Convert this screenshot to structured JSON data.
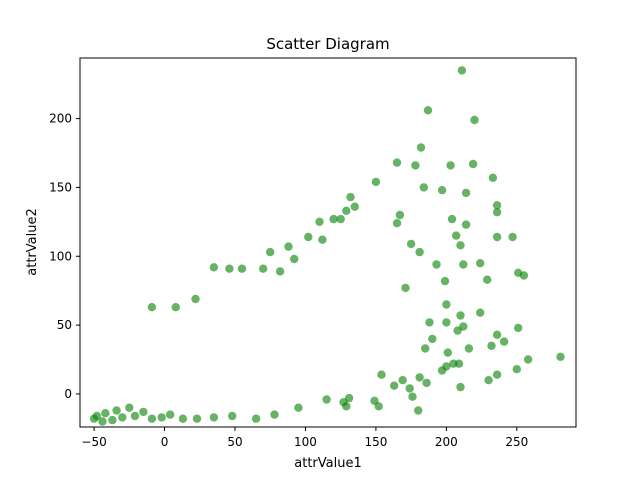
{
  "chart_data": {
    "type": "scatter",
    "title": "Scatter Diagram",
    "xlabel": "attrValue1",
    "ylabel": "attrValue2",
    "xlim": [
      -60,
      292
    ],
    "ylim": [
      -24,
      244
    ],
    "x_ticks": [
      -50,
      0,
      50,
      100,
      150,
      200,
      250
    ],
    "y_ticks": [
      0,
      50,
      100,
      150,
      200
    ],
    "grid": false,
    "marker_color": "#008000",
    "marker_alpha": 0.6,
    "series": [
      {
        "points": [
          [
            211,
            235
          ],
          [
            187,
            206
          ],
          [
            220,
            199
          ],
          [
            182,
            179
          ],
          [
            165,
            168
          ],
          [
            203,
            166
          ],
          [
            219,
            167
          ],
          [
            178,
            166
          ],
          [
            233,
            157
          ],
          [
            150,
            154
          ],
          [
            184,
            150
          ],
          [
            197,
            148
          ],
          [
            214,
            146
          ],
          [
            132,
            143
          ],
          [
            135,
            136
          ],
          [
            129,
            133
          ],
          [
            236,
            137
          ],
          [
            236,
            132
          ],
          [
            167,
            130
          ],
          [
            204,
            127
          ],
          [
            214,
            123
          ],
          [
            165,
            124
          ],
          [
            110,
            125
          ],
          [
            247,
            114
          ],
          [
            236,
            114
          ],
          [
            207,
            115
          ],
          [
            175,
            109
          ],
          [
            210,
            108
          ],
          [
            181,
            103
          ],
          [
            193,
            94
          ],
          [
            212,
            94
          ],
          [
            224,
            95
          ],
          [
            251,
            88
          ],
          [
            255,
            86
          ],
          [
            229,
            83
          ],
          [
            199,
            82
          ],
          [
            171,
            77
          ],
          [
            281,
            27
          ],
          [
            258,
            25
          ],
          [
            251,
            48
          ],
          [
            250,
            18
          ],
          [
            236,
            43
          ],
          [
            232,
            35
          ],
          [
            241,
            38
          ],
          [
            236,
            14
          ],
          [
            230,
            10
          ],
          [
            209,
            22
          ],
          [
            210,
            5
          ],
          [
            205,
            22
          ],
          [
            197,
            17
          ],
          [
            181,
            12
          ],
          [
            186,
            8
          ],
          [
            169,
            10
          ],
          [
            154,
            14
          ],
          [
            163,
            6
          ],
          [
            174,
            4
          ],
          [
            176,
            -2
          ],
          [
            149,
            -5
          ],
          [
            152,
            -9
          ],
          [
            129,
            -9
          ],
          [
            131,
            -3
          ],
          [
            115,
            -4
          ],
          [
            180,
            -12
          ],
          [
            127,
            -6
          ],
          [
            95,
            -10
          ],
          [
            -50,
            -18
          ],
          [
            -48,
            -16
          ],
          [
            -44,
            -20
          ],
          [
            -42,
            -14
          ],
          [
            -37,
            -19
          ],
          [
            -34,
            -12
          ],
          [
            -30,
            -17
          ],
          [
            -25,
            -10
          ],
          [
            -21,
            -16
          ],
          [
            -15,
            -13
          ],
          [
            -9,
            -18
          ],
          [
            -2,
            -17
          ],
          [
            4,
            -15
          ],
          [
            13,
            -18
          ],
          [
            23,
            -18
          ],
          [
            35,
            -17
          ],
          [
            48,
            -16
          ],
          [
            65,
            -18
          ],
          [
            78,
            -15
          ],
          [
            -9,
            63
          ],
          [
            8,
            63
          ],
          [
            22,
            69
          ],
          [
            35,
            92
          ],
          [
            46,
            91
          ],
          [
            55,
            91
          ],
          [
            70,
            91
          ],
          [
            82,
            89
          ],
          [
            102,
            114
          ],
          [
            112,
            112
          ],
          [
            120,
            127
          ],
          [
            125,
            127
          ],
          [
            92,
            98
          ],
          [
            88,
            107
          ],
          [
            75,
            103
          ],
          [
            200,
            65
          ],
          [
            210,
            57
          ],
          [
            224,
            59
          ],
          [
            200,
            52
          ],
          [
            188,
            52
          ],
          [
            190,
            40
          ],
          [
            216,
            33
          ],
          [
            201,
            30
          ],
          [
            208,
            46
          ],
          [
            212,
            49
          ],
          [
            200,
            20
          ],
          [
            185,
            33
          ]
        ]
      }
    ]
  }
}
